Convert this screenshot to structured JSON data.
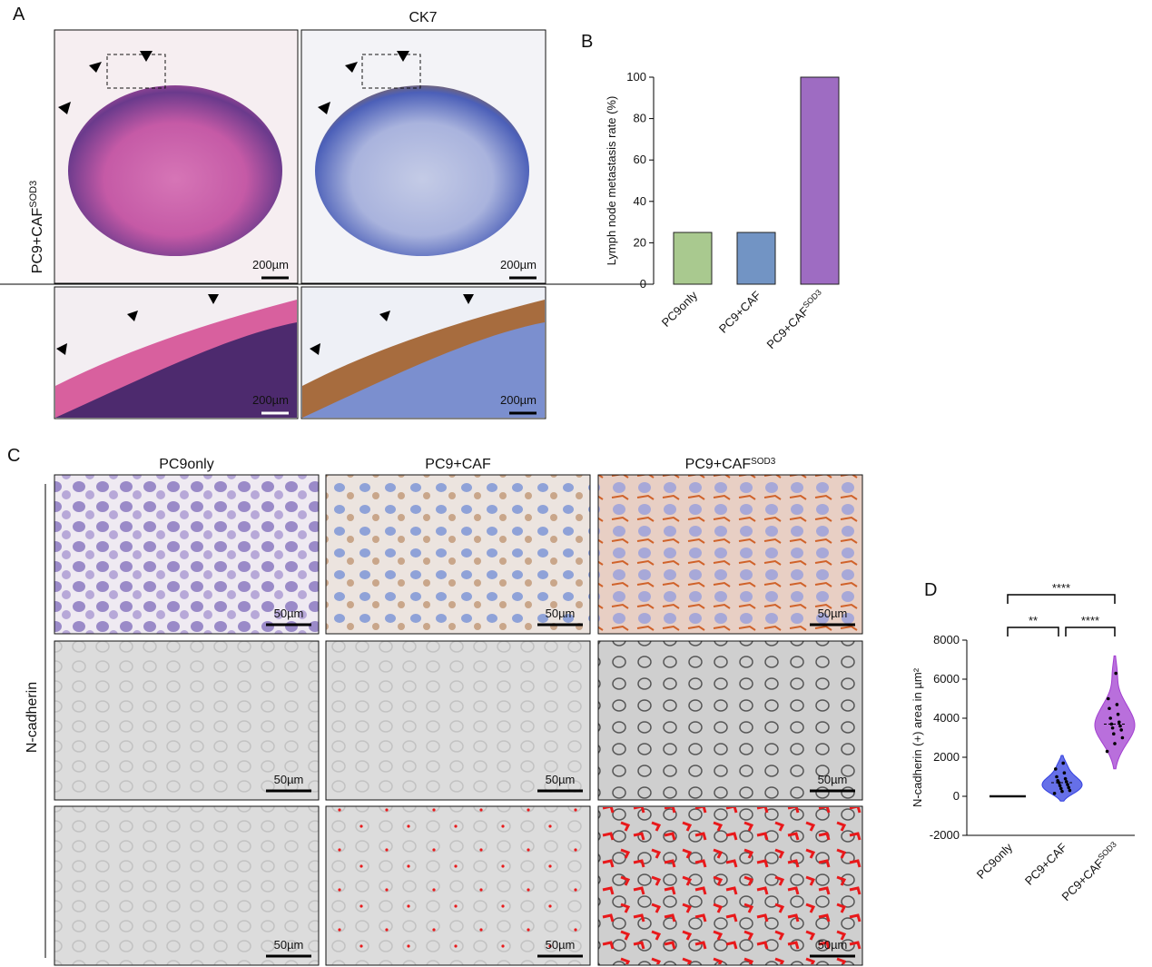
{
  "panels": {
    "labels": [
      "A",
      "B",
      "C",
      "D"
    ]
  },
  "panel_a": {
    "row_label": "PC9+CAF",
    "row_label_sup": "SOD3",
    "stain_title": "CK7",
    "scale_bars": [
      "200µm",
      "200µm",
      "200µm",
      "200µm"
    ]
  },
  "panel_c": {
    "columns": [
      {
        "text": "PC9only"
      },
      {
        "text": "PC9+CAF"
      },
      {
        "text": "PC9+CAF",
        "sup": "SOD3"
      }
    ],
    "row_label": "N-cadherin",
    "scale_bars": [
      "50µm",
      "50µm",
      "50µm",
      "50µm",
      "50µm",
      "50µm",
      "50µm",
      "50µm",
      "50µm"
    ]
  },
  "chart_data": [
    {
      "type": "bar",
      "y_label": "Lymph node metastasis rate (%)",
      "categories": [
        "PC9only",
        "PC9+CAF",
        "PC9+CAF"
      ],
      "category_sups": {
        "2": "SOD3"
      },
      "values": [
        25,
        25,
        100
      ],
      "colors": [
        "#a9c98f",
        "#7294c4",
        "#9e6cc2"
      ],
      "ylim": [
        0,
        100
      ],
      "yticks": [
        0,
        20,
        40,
        60,
        80,
        100
      ],
      "grid": false
    },
    {
      "type": "violin",
      "y_label": "N-cadherin (+) area in µm²",
      "categories": [
        "PC9only",
        "PC9+CAF",
        "PC9+CAF"
      ],
      "category_sups": {
        "2": "SOD3"
      },
      "groups": [
        {
          "color": "#111111",
          "values": [
            0,
            0,
            0,
            0,
            0,
            0,
            0,
            0,
            0,
            0,
            0,
            0
          ]
        },
        {
          "color": "#3340e0",
          "values": [
            150,
            250,
            300,
            400,
            450,
            550,
            600,
            700,
            750,
            800,
            900,
            1000,
            1200,
            1400,
            1700
          ]
        },
        {
          "color": "#a23fd0",
          "values": [
            2300,
            2700,
            3000,
            3200,
            3400,
            3500,
            3600,
            3700,
            3800,
            4000,
            4200,
            4500,
            4700,
            5000,
            6300
          ]
        }
      ],
      "annotations": [
        "****",
        "**",
        "****"
      ],
      "ylim": [
        -2000,
        8000
      ],
      "yticks": [
        -2000,
        0,
        2000,
        4000,
        6000,
        8000
      ],
      "grid": false
    }
  ]
}
